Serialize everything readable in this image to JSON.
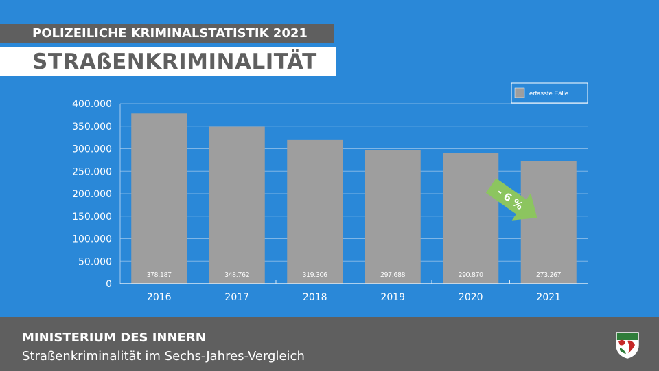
{
  "header": {
    "supertitle": "POLIZEILICHE KRIMINALSTATISTIK 2021",
    "title": "STRAßENKRIMINALITÄT"
  },
  "footer": {
    "organization": "MINISTERIUM DES INNERN",
    "subtitle": "Straßenkriminalität im Sechs-Jahres-Vergleich",
    "crest_icon": "nrw-coat-of-arms-icon"
  },
  "chart_data": {
    "type": "bar",
    "categories": [
      "2016",
      "2017",
      "2018",
      "2019",
      "2020",
      "2021"
    ],
    "series": [
      {
        "name": "erfasste Fälle",
        "values": [
          378187,
          348762,
          319306,
          297688,
          290870,
          273267
        ],
        "labels": [
          "378.187",
          "348.762",
          "319.306",
          "297.688",
          "290.870",
          "273.267"
        ],
        "color": "#9e9e9e"
      }
    ],
    "ylim": [
      0,
      400000
    ],
    "yticks": [
      0,
      50000,
      100000,
      150000,
      200000,
      250000,
      300000,
      350000,
      400000
    ],
    "ytick_labels": [
      "0",
      "50.000",
      "100.000",
      "150.000",
      "200.000",
      "250.000",
      "300.000",
      "350.000",
      "400.000"
    ],
    "grid": true,
    "legend_position": "top-right",
    "annotation": {
      "text": "- 6 %",
      "color": "#8cc55f"
    }
  },
  "colors": {
    "background": "#2a88d8",
    "bar": "#9e9e9e",
    "header_dark": "#5f5f5f",
    "accent_green": "#8cc55f"
  }
}
